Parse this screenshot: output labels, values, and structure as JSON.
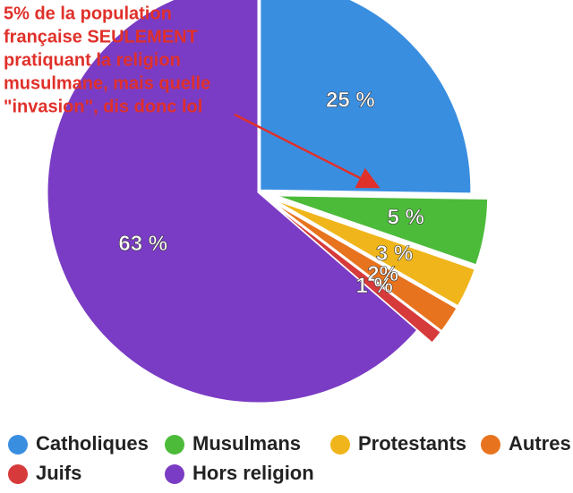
{
  "chart_data": {
    "type": "pie",
    "annotation": [
      "5% de la population",
      "française SEULEMENT",
      "pratiquant la religion",
      "musulmane, mais quelle",
      "\"invasion\", dis donc lol"
    ],
    "categories": [
      "Catholiques",
      "Musulmans",
      "Protestants",
      "Autres",
      "Juifs",
      "Hors religion"
    ],
    "values": [
      25,
      5,
      3,
      2,
      1,
      63
    ],
    "value_labels": [
      "25 %",
      "5 %",
      "3 %",
      "2%",
      "1 %",
      "63 %"
    ],
    "colors": [
      "#3a8ee0",
      "#4cbb3a",
      "#f0b51a",
      "#e8731e",
      "#d63a3a",
      "#7a3cc4"
    ],
    "legend": "bottom"
  }
}
